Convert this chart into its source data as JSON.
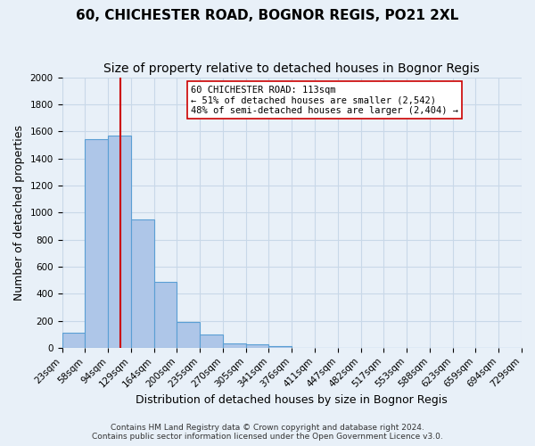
{
  "title": "60, CHICHESTER ROAD, BOGNOR REGIS, PO21 2XL",
  "subtitle": "Size of property relative to detached houses in Bognor Regis",
  "xlabel": "Distribution of detached houses by size in Bognor Regis",
  "ylabel": "Number of detached properties",
  "bar_values": [
    110,
    1540,
    1570,
    950,
    490,
    190,
    100,
    35,
    25,
    15,
    0,
    0,
    0,
    0,
    0,
    0,
    0,
    0,
    0,
    0
  ],
  "bin_labels": [
    "23sqm",
    "58sqm",
    "94sqm",
    "129sqm",
    "164sqm",
    "200sqm",
    "235sqm",
    "270sqm",
    "305sqm",
    "341sqm",
    "376sqm",
    "411sqm",
    "447sqm",
    "482sqm",
    "517sqm",
    "553sqm",
    "588sqm",
    "623sqm",
    "659sqm",
    "694sqm",
    "729sqm"
  ],
  "n_bins": 20,
  "bar_color": "#aec6e8",
  "bar_edge_color": "#5a9fd4",
  "vline_color": "#cc0000",
  "annotation_title": "60 CHICHESTER ROAD: 113sqm",
  "annotation_line1": "← 51% of detached houses are smaller (2,542)",
  "annotation_line2": "48% of semi-detached houses are larger (2,404) →",
  "annotation_box_color": "#ffffff",
  "annotation_box_edge": "#cc0000",
  "ylim": [
    0,
    2000
  ],
  "yticks": [
    0,
    200,
    400,
    600,
    800,
    1000,
    1200,
    1400,
    1600,
    1800,
    2000
  ],
  "grid_color": "#c8d8e8",
  "background_color": "#e8f0f8",
  "footer_line1": "Contains HM Land Registry data © Crown copyright and database right 2024.",
  "footer_line2": "Contains public sector information licensed under the Open Government Licence v3.0.",
  "title_fontsize": 11,
  "subtitle_fontsize": 10,
  "xlabel_fontsize": 9,
  "ylabel_fontsize": 9,
  "tick_fontsize": 7.5,
  "footer_fontsize": 6.5
}
